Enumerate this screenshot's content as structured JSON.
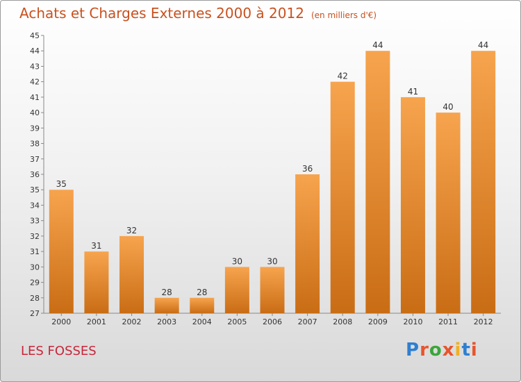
{
  "header": {
    "title": "Achats et Charges Externes 2000 à 2012",
    "subtitle": "(en milliers d'€)"
  },
  "footer": {
    "town": "LES FOSSES",
    "logo_text": "Proxiti"
  },
  "colors": {
    "bar_light": "#f7a44e",
    "bar_dark": "#c96d15",
    "title": "#c8511f",
    "town": "#c8253a"
  },
  "chart_data": {
    "type": "bar",
    "title": "Achats et Charges Externes 2000 à 2012",
    "subtitle": "(en milliers d'€)",
    "xlabel": "",
    "ylabel": "",
    "categories": [
      "2000",
      "2001",
      "2002",
      "2003",
      "2004",
      "2005",
      "2006",
      "2007",
      "2008",
      "2009",
      "2010",
      "2011",
      "2012"
    ],
    "values": [
      35,
      31,
      32,
      28,
      28,
      30,
      30,
      36,
      42,
      44,
      41,
      40,
      44
    ],
    "ylim": [
      27,
      45
    ],
    "yticks": [
      27,
      28,
      29,
      30,
      31,
      32,
      33,
      34,
      35,
      36,
      37,
      38,
      39,
      40,
      41,
      42,
      43,
      44,
      45
    ],
    "grid": false,
    "data_labels": true
  }
}
